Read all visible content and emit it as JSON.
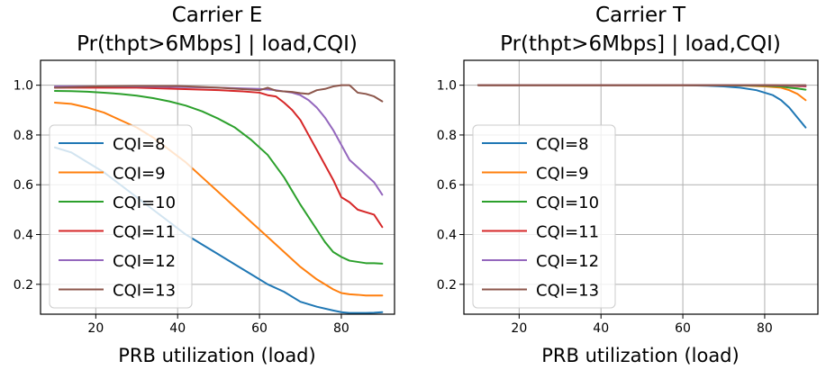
{
  "chart_data": [
    {
      "type": "line",
      "title_line1": "Carrier E",
      "title_line2": "Pr(thpt>6Mbps] | load,CQI)",
      "xlabel": "PRB utilization (load)",
      "ylabel": "",
      "xlim": [
        6.5,
        93
      ],
      "ylim": [
        0.08,
        1.1
      ],
      "xticks": [
        20,
        40,
        60,
        80
      ],
      "yticks": [
        0.2,
        0.4,
        0.6,
        0.8,
        1.0
      ],
      "xtick_labels": [
        "20",
        "40",
        "60",
        "80"
      ],
      "ytick_labels": [
        "0.2",
        "0.4",
        "0.6",
        "0.8",
        "1.0"
      ],
      "grid": true,
      "legend_position": "lower-left",
      "series": [
        {
          "name": "CQI=8",
          "color": "#1f77b4",
          "x": [
            10,
            14,
            18,
            22,
            26,
            30,
            34,
            38,
            42,
            46,
            50,
            54,
            58,
            62,
            66,
            70,
            72,
            74,
            78,
            80,
            82,
            86,
            88,
            90
          ],
          "y": [
            0.75,
            0.73,
            0.69,
            0.65,
            0.6,
            0.55,
            0.5,
            0.45,
            0.4,
            0.36,
            0.32,
            0.28,
            0.24,
            0.2,
            0.17,
            0.13,
            0.12,
            0.11,
            0.095,
            0.088,
            0.085,
            0.085,
            0.086,
            0.088
          ]
        },
        {
          "name": "CQI=9",
          "color": "#ff7f0e",
          "x": [
            10,
            14,
            18,
            22,
            26,
            30,
            34,
            38,
            42,
            46,
            50,
            54,
            58,
            62,
            66,
            70,
            74,
            78,
            80,
            82,
            84,
            86,
            88,
            90
          ],
          "y": [
            0.93,
            0.925,
            0.91,
            0.89,
            0.86,
            0.83,
            0.79,
            0.74,
            0.69,
            0.63,
            0.57,
            0.51,
            0.45,
            0.39,
            0.33,
            0.27,
            0.22,
            0.18,
            0.165,
            0.16,
            0.158,
            0.155,
            0.155,
            0.155
          ]
        },
        {
          "name": "CQI=10",
          "color": "#2ca02c",
          "x": [
            10,
            14,
            18,
            22,
            26,
            30,
            34,
            38,
            42,
            46,
            50,
            54,
            58,
            62,
            66,
            70,
            74,
            76,
            78,
            80,
            82,
            84,
            86,
            88,
            90
          ],
          "y": [
            0.977,
            0.976,
            0.974,
            0.97,
            0.965,
            0.958,
            0.948,
            0.935,
            0.918,
            0.895,
            0.865,
            0.83,
            0.78,
            0.72,
            0.63,
            0.52,
            0.42,
            0.37,
            0.33,
            0.31,
            0.295,
            0.29,
            0.285,
            0.285,
            0.283
          ]
        },
        {
          "name": "CQI=11",
          "color": "#d62728",
          "x": [
            10,
            20,
            30,
            40,
            50,
            56,
            60,
            62,
            64,
            66,
            68,
            70,
            72,
            74,
            76,
            78,
            80,
            82,
            84,
            86,
            88,
            90
          ],
          "y": [
            0.99,
            0.99,
            0.99,
            0.985,
            0.98,
            0.975,
            0.97,
            0.96,
            0.955,
            0.93,
            0.9,
            0.86,
            0.8,
            0.74,
            0.68,
            0.62,
            0.55,
            0.53,
            0.5,
            0.49,
            0.48,
            0.43
          ]
        },
        {
          "name": "CQI=12",
          "color": "#9467bd",
          "x": [
            10,
            20,
            30,
            40,
            50,
            60,
            64,
            66,
            68,
            70,
            72,
            74,
            76,
            78,
            80,
            82,
            84,
            86,
            88,
            90
          ],
          "y": [
            0.995,
            0.995,
            0.995,
            0.993,
            0.99,
            0.985,
            0.98,
            0.975,
            0.97,
            0.96,
            0.94,
            0.91,
            0.87,
            0.82,
            0.76,
            0.7,
            0.67,
            0.64,
            0.61,
            0.56
          ]
        },
        {
          "name": "CQI=13",
          "color": "#8c564b",
          "x": [
            10,
            20,
            30,
            40,
            50,
            60,
            62,
            64,
            66,
            68,
            70,
            72,
            74,
            76,
            78,
            80,
            82,
            84,
            86,
            88,
            90
          ],
          "y": [
            0.99,
            0.995,
            0.997,
            0.997,
            0.99,
            0.98,
            0.99,
            0.978,
            0.975,
            0.973,
            0.968,
            0.965,
            0.98,
            0.985,
            0.995,
            1.0,
            1.0,
            0.97,
            0.965,
            0.955,
            0.935
          ]
        }
      ]
    },
    {
      "type": "line",
      "title_line1": "Carrier T",
      "title_line2": "Pr(thpt>6Mbps] | load,CQI)",
      "xlabel": "PRB utilization (load)",
      "ylabel": "",
      "xlim": [
        6.5,
        93
      ],
      "ylim": [
        0.08,
        1.1
      ],
      "xticks": [
        20,
        40,
        60,
        80
      ],
      "yticks": [
        0.2,
        0.4,
        0.6,
        0.8,
        1.0
      ],
      "xtick_labels": [
        "20",
        "40",
        "60",
        "80"
      ],
      "ytick_labels": [
        "0.2",
        "0.4",
        "0.6",
        "0.8",
        "1.0"
      ],
      "grid": true,
      "legend_position": "lower-left",
      "series": [
        {
          "name": "CQI=8",
          "color": "#1f77b4",
          "x": [
            10,
            20,
            30,
            40,
            50,
            60,
            66,
            70,
            74,
            78,
            82,
            84,
            86,
            88,
            90
          ],
          "y": [
            1.0,
            1.0,
            1.0,
            1.0,
            1.0,
            1.0,
            0.998,
            0.995,
            0.99,
            0.98,
            0.96,
            0.94,
            0.91,
            0.87,
            0.83
          ]
        },
        {
          "name": "CQI=9",
          "color": "#ff7f0e",
          "x": [
            10,
            20,
            30,
            40,
            50,
            60,
            70,
            76,
            80,
            84,
            86,
            88,
            90
          ],
          "y": [
            1.0,
            1.0,
            1.0,
            1.0,
            1.0,
            1.0,
            1.0,
            0.998,
            0.995,
            0.99,
            0.98,
            0.965,
            0.94
          ]
        },
        {
          "name": "CQI=10",
          "color": "#2ca02c",
          "x": [
            10,
            20,
            30,
            40,
            50,
            60,
            70,
            80,
            84,
            86,
            88,
            90
          ],
          "y": [
            1.0,
            1.0,
            1.0,
            1.0,
            1.0,
            1.0,
            1.0,
            0.998,
            0.995,
            0.99,
            0.987,
            0.982
          ]
        },
        {
          "name": "CQI=11",
          "color": "#d62728",
          "x": [
            10,
            20,
            30,
            40,
            50,
            60,
            70,
            80,
            86,
            90
          ],
          "y": [
            1.0,
            1.0,
            1.0,
            1.0,
            1.0,
            1.0,
            1.0,
            1.0,
            0.998,
            0.995
          ]
        },
        {
          "name": "CQI=12",
          "color": "#9467bd",
          "x": [
            10,
            20,
            30,
            40,
            50,
            60,
            70,
            80,
            90
          ],
          "y": [
            1.0,
            1.0,
            1.0,
            1.0,
            1.0,
            1.0,
            1.0,
            1.0,
            0.998
          ]
        },
        {
          "name": "CQI=13",
          "color": "#8c564b",
          "x": [
            10,
            20,
            30,
            40,
            50,
            60,
            70,
            80,
            90
          ],
          "y": [
            1.0,
            1.0,
            1.0,
            1.0,
            1.0,
            1.0,
            1.0,
            1.0,
            1.0
          ]
        }
      ]
    }
  ]
}
